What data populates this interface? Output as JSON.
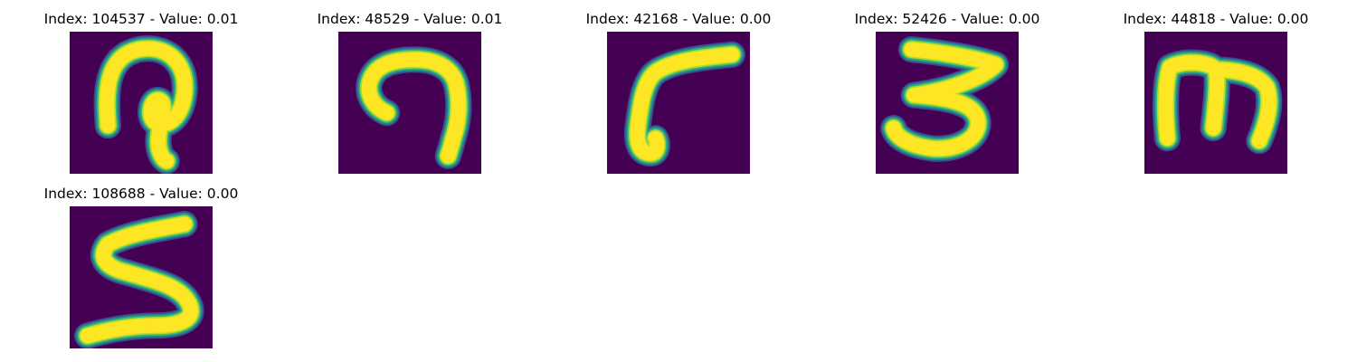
{
  "colors": {
    "background": "#440154",
    "stroke_core": "#fde725",
    "stroke_edge_1": "#b5de2b",
    "stroke_edge_2": "#35b779",
    "stroke_edge_3": "#26828e",
    "stroke_edge_4": "#3e4989"
  },
  "panels": [
    {
      "title": "Index: 104537 - Value: 0.01",
      "glyph": "loop-hook"
    },
    {
      "title": "Index: 48529 - Value: 0.01",
      "glyph": "arch-hook"
    },
    {
      "title": "Index: 42168 - Value: 0.00",
      "glyph": "bent-stroke"
    },
    {
      "title": "Index: 52426 - Value: 0.00",
      "glyph": "three"
    },
    {
      "title": "Index: 44818 - Value: 0.00",
      "glyph": "m-shape"
    },
    {
      "title": "Index: 108688 - Value: 0.00",
      "glyph": "five"
    }
  ]
}
